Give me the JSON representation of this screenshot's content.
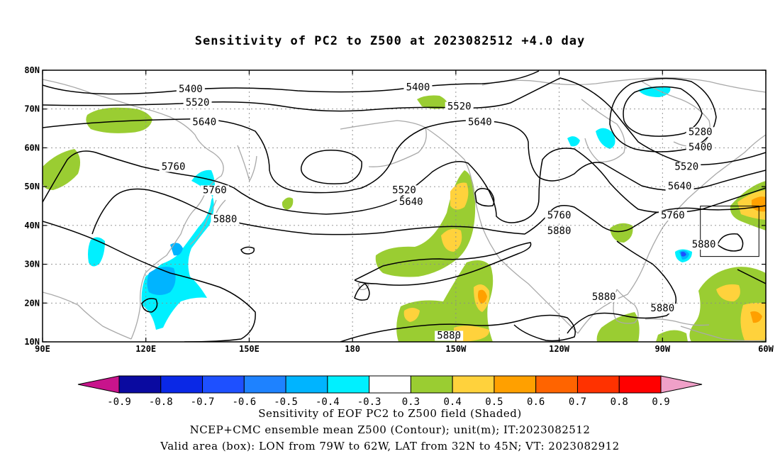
{
  "title": "Sensitivity of PC2 to Z500 at 2023082512 +4.0 day",
  "map": {
    "lat_ticks": [
      "80N",
      "70N",
      "60N",
      "50N",
      "40N",
      "30N",
      "20N",
      "10N"
    ],
    "lon_ticks": [
      "90E",
      "120E",
      "150E",
      "180",
      "150W",
      "120W",
      "90W",
      "60W"
    ],
    "extent": {
      "lon": [
        90,
        300
      ],
      "lat": [
        10,
        80
      ]
    },
    "gridlines": true,
    "contour_labels": [
      {
        "text": "5400",
        "lon": 133,
        "lat": 74.5
      },
      {
        "text": "5520",
        "lon": 135,
        "lat": 71
      },
      {
        "text": "5640",
        "lon": 137,
        "lat": 66
      },
      {
        "text": "5760",
        "lon": 128,
        "lat": 54.5
      },
      {
        "text": "5760",
        "lon": 140,
        "lat": 48.5
      },
      {
        "text": "5880",
        "lon": 143,
        "lat": 41
      },
      {
        "text": "5400",
        "lon": 199,
        "lat": 75
      },
      {
        "text": "5520",
        "lon": 211,
        "lat": 70
      },
      {
        "text": "5640",
        "lon": 217,
        "lat": 66
      },
      {
        "text": "5520",
        "lon": 195,
        "lat": 48.5
      },
      {
        "text": "5640",
        "lon": 197,
        "lat": 45.5
      },
      {
        "text": "5760",
        "lon": 240,
        "lat": 42
      },
      {
        "text": "5880",
        "lon": 240,
        "lat": 38
      },
      {
        "text": "5280",
        "lon": 281,
        "lat": 63.5
      },
      {
        "text": "5400",
        "lon": 281,
        "lat": 59.5
      },
      {
        "text": "5520",
        "lon": 277,
        "lat": 54.5
      },
      {
        "text": "5640",
        "lon": 275,
        "lat": 49.5
      },
      {
        "text": "5760",
        "lon": 273,
        "lat": 42
      },
      {
        "text": "5880",
        "lon": 282,
        "lat": 34.5
      },
      {
        "text": "5880",
        "lon": 253,
        "lat": 21
      },
      {
        "text": "5880",
        "lon": 270,
        "lat": 18
      },
      {
        "text": "5880",
        "lon": 208,
        "lat": 11
      }
    ],
    "valid_box": {
      "lon": [
        281,
        298
      ],
      "lat": [
        32,
        45
      ]
    }
  },
  "colorbar": {
    "labels": [
      "-0.9",
      "-0.8",
      "-0.7",
      "-0.6",
      "-0.5",
      "-0.4",
      "-0.3",
      "0.3",
      "0.4",
      "0.5",
      "0.6",
      "0.7",
      "0.8",
      "0.9"
    ],
    "low_arrow_color": "#c8148c",
    "high_arrow_color": "#f0a0c8",
    "colors": [
      "#0a0aa0",
      "#0a28e6",
      "#1e50ff",
      "#1e82ff",
      "#00b4ff",
      "#00f0ff",
      "#ffffff",
      "#9acd32",
      "#ffd23c",
      "#ffa000",
      "#ff6400",
      "#ff3200",
      "#ff0000"
    ]
  },
  "caption": {
    "line1": "Sensitivity of EOF PC2 to Z500 field (Shaded)",
    "line2": "NCEP+CMC ensemble mean Z500 (Contour); unit(m); IT:2023082512",
    "line3": "Valid area (box): LON from 79W to 62W, LAT from 32N to 45N; VT: 2023082912"
  }
}
